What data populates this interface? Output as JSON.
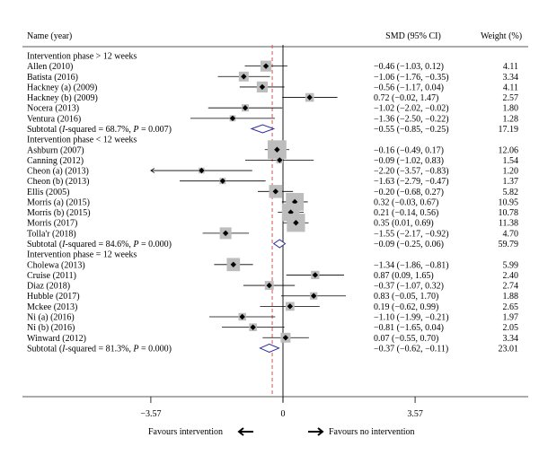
{
  "chart_data": {
    "type": "forest",
    "header": {
      "name": "Name (year)",
      "ci": "SMD (95% CI)",
      "weight": "Weight (%)"
    },
    "x_ticks": [
      {
        "value": -3.57,
        "label": "−3.57"
      },
      {
        "value": 0,
        "label": "0"
      },
      {
        "value": 3.57,
        "label": "3.57"
      }
    ],
    "overall_effect": -0.29,
    "footer": {
      "left": "Favours intervention",
      "right": "Favours no intervention"
    },
    "groups": [
      {
        "title": "Intervention phase > 12 weeks",
        "studies": [
          {
            "name": "Allen (2010)",
            "est": -0.46,
            "lo": -1.03,
            "hi": 0.12,
            "ci": "−0.46 (−1.03, 0.12)",
            "weight": "4.11"
          },
          {
            "name": "Batista (2016)",
            "est": -1.06,
            "lo": -1.76,
            "hi": -0.35,
            "ci": "−1.06 (−1.76, −0.35)",
            "weight": "3.34"
          },
          {
            "name": "Hackney (a) (2009)",
            "est": -0.56,
            "lo": -1.17,
            "hi": 0.04,
            "ci": "−0.56 (−1.17, 0.04)",
            "weight": "4.11"
          },
          {
            "name": "Hackney (b) (2009)",
            "est": 0.72,
            "lo": -0.02,
            "hi": 1.47,
            "ci": "0.72 (−0.02, 1.47)",
            "weight": "2.57"
          },
          {
            "name": "Nocera (2013)",
            "est": -1.02,
            "lo": -2.02,
            "hi": -0.02,
            "ci": "−1.02 (−2.02, −0.02)",
            "weight": "1.80"
          },
          {
            "name": "Ventura (2016)",
            "est": -1.36,
            "lo": -2.5,
            "hi": -0.22,
            "ci": "−1.36 (−2.50, −0.22)",
            "weight": "1.28"
          }
        ],
        "subtotal": {
          "label": "Subtotal (I-squared = 68.7%, P = 0.007)",
          "est": -0.55,
          "lo": -0.85,
          "hi": -0.25,
          "ci": "−0.55 (−0.85, −0.25)",
          "weight": "17.19"
        }
      },
      {
        "title": "Intervention phase < 12 weeks",
        "studies": [
          {
            "name": "Ashburn (2007)",
            "est": -0.16,
            "lo": -0.49,
            "hi": 0.17,
            "ci": "−0.16 (−0.49, 0.17)",
            "weight": "12.06"
          },
          {
            "name": "Canning (2012)",
            "est": -0.09,
            "lo": -1.02,
            "hi": 0.83,
            "ci": "−0.09 (−1.02, 0.83)",
            "weight": "1.54"
          },
          {
            "name": "Cheon (a) (2013)",
            "est": -2.2,
            "lo": -3.57,
            "hi": -0.83,
            "ci": "−2.20 (−3.57, −0.83)",
            "weight": "1.20",
            "arrow_left": true
          },
          {
            "name": "Cheon (b) (2013)",
            "est": -1.63,
            "lo": -2.79,
            "hi": -0.47,
            "ci": "−1.63 (−2.79, −0.47)",
            "weight": "1.37"
          },
          {
            "name": "Ellis (2005)",
            "est": -0.2,
            "lo": -0.68,
            "hi": 0.27,
            "ci": "−0.20 (−0.68, 0.27)",
            "weight": "5.82"
          },
          {
            "name": "Morris (a) (2015)",
            "est": 0.32,
            "lo": -0.03,
            "hi": 0.67,
            "ci": "0.32 (−0.03, 0.67)",
            "weight": "10.95"
          },
          {
            "name": "Morris (b) (2015)",
            "est": 0.21,
            "lo": -0.14,
            "hi": 0.56,
            "ci": "0.21 (−0.14, 0.56)",
            "weight": "10.78"
          },
          {
            "name": "Morris (2017)",
            "est": 0.35,
            "lo": 0.01,
            "hi": 0.69,
            "ci": "0.35 (0.01, 0.69)",
            "weight": "11.38"
          },
          {
            "name": "Tolla'r (2018)",
            "est": -1.55,
            "lo": -2.17,
            "hi": -0.92,
            "ci": "−1.55 (−2.17, −0.92)",
            "weight": "4.70"
          }
        ],
        "subtotal": {
          "label": "Subtotal (I-squared = 84.6%, P = 0.000)",
          "est": -0.09,
          "lo": -0.25,
          "hi": 0.06,
          "ci": "−0.09 (−0.25, 0.06)",
          "weight": "59.79"
        }
      },
      {
        "title": "Intervention phase = 12 weeks",
        "studies": [
          {
            "name": "Cholewa (2013)",
            "est": -1.34,
            "lo": -1.86,
            "hi": -0.81,
            "ci": "−1.34 (−1.86, −0.81)",
            "weight": "5.99"
          },
          {
            "name": "Cruise (2011)",
            "est": 0.87,
            "lo": 0.09,
            "hi": 1.65,
            "ci": "0.87 (0.09, 1.65)",
            "weight": "2.40"
          },
          {
            "name": "Diaz (2018)",
            "est": -0.37,
            "lo": -1.07,
            "hi": 0.32,
            "ci": "−0.37 (−1.07, 0.32)",
            "weight": "2.74"
          },
          {
            "name": "Hubble (2017)",
            "est": 0.83,
            "lo": -0.05,
            "hi": 1.7,
            "ci": "0.83 (−0.05, 1.70)",
            "weight": "1.88"
          },
          {
            "name": "Mckee (2013)",
            "est": 0.19,
            "lo": -0.62,
            "hi": 0.99,
            "ci": "0.19 (−0.62, 0.99)",
            "weight": "2.65"
          },
          {
            "name": "Ni (a) (2016)",
            "est": -1.1,
            "lo": -1.99,
            "hi": -0.21,
            "ci": "−1.10 (−1.99, −0.21)",
            "weight": "1.97"
          },
          {
            "name": "Ni (b) (2016)",
            "est": -0.81,
            "lo": -1.65,
            "hi": 0.04,
            "ci": "−0.81 (−1.65, 0.04)",
            "weight": "2.05"
          },
          {
            "name": "Winward (2012)",
            "est": 0.07,
            "lo": -0.55,
            "hi": 0.7,
            "ci": "0.07 (−0.55, 0.70)",
            "weight": "3.34"
          }
        ],
        "subtotal": {
          "label": "Subtotal (I-squared = 81.3%, P = 0.000)",
          "est": -0.37,
          "lo": -0.62,
          "hi": -0.11,
          "ci": "−0.37 (−0.62, −0.11)",
          "weight": "23.01"
        }
      }
    ]
  }
}
